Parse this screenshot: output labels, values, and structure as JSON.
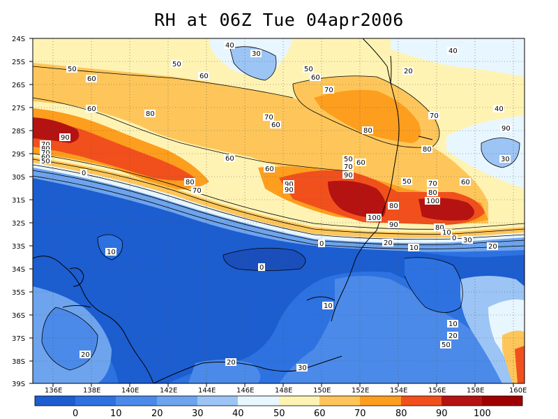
{
  "title": "RH at 06Z Tue 04apr2006",
  "map": {
    "lat_ticks": [
      "24S",
      "25S",
      "26S",
      "27S",
      "28S",
      "29S",
      "30S",
      "31S",
      "32S",
      "33S",
      "34S",
      "35S",
      "36S",
      "37S",
      "38S",
      "39S"
    ],
    "lon_ticks": [
      "136E",
      "138E",
      "140E",
      "142E",
      "144E",
      "146E",
      "148E",
      "150E",
      "152E",
      "154E",
      "156E",
      "158E",
      "160E"
    ],
    "contour_labels": [
      "40",
      "30",
      "50",
      "50",
      "60",
      "50",
      "60",
      "70",
      "70",
      "60",
      "80",
      "60",
      "60",
      "80",
      "90",
      "70",
      "80",
      "70",
      "60",
      "60",
      "50",
      "60",
      "70",
      "90",
      "90",
      "80",
      "70",
      "80",
      "90",
      "100",
      "100",
      "30",
      "80",
      "90",
      "80",
      "70",
      "60",
      "50",
      "0",
      "0",
      "0",
      "10",
      "10",
      "10",
      "10",
      "20",
      "20",
      "20",
      "20",
      "20",
      "30",
      "50",
      "40",
      "90",
      "80",
      "70",
      "60",
      "50",
      "40",
      "30",
      "20",
      "10",
      "0"
    ]
  },
  "colorbar": {
    "labels": [
      "0",
      "10",
      "20",
      "30",
      "40",
      "50",
      "60",
      "70",
      "80",
      "90",
      "100"
    ],
    "colors": [
      "#1c5dd0",
      "#2d72e0",
      "#4b8ae8",
      "#6ea4ee",
      "#9cc5f5",
      "#e8f6ff",
      "#fff3b4",
      "#fec65a",
      "#fd9e1e",
      "#f1501c",
      "#b51212",
      "#a00000"
    ]
  }
}
